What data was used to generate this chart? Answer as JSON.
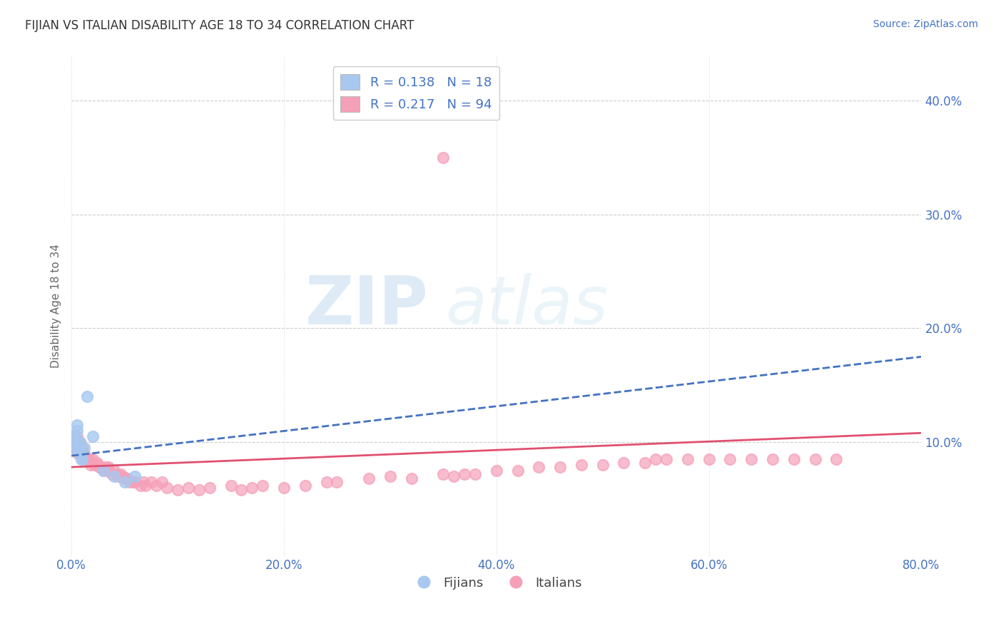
{
  "title": "FIJIAN VS ITALIAN DISABILITY AGE 18 TO 34 CORRELATION CHART",
  "source": "Source: ZipAtlas.com",
  "xlabel": "",
  "ylabel": "Disability Age 18 to 34",
  "xlim": [
    0.0,
    0.8
  ],
  "ylim": [
    0.0,
    0.44
  ],
  "xticks": [
    0.0,
    0.2,
    0.4,
    0.6,
    0.8
  ],
  "yticks": [
    0.1,
    0.2,
    0.3,
    0.4
  ],
  "fijian_R": 0.138,
  "fijian_N": 18,
  "italian_R": 0.217,
  "italian_N": 94,
  "fijian_color": "#a8c8f0",
  "italian_color": "#f5a0b8",
  "fijian_line_color": "#4472c4",
  "italian_line_color": "#e05070",
  "background_color": "#ffffff",
  "watermark_zip": "ZIP",
  "watermark_atlas": "atlas",
  "fijian_x": [
    0.002,
    0.003,
    0.004,
    0.005,
    0.005,
    0.006,
    0.007,
    0.008,
    0.008,
    0.009,
    0.01,
    0.012,
    0.015,
    0.02,
    0.03,
    0.04,
    0.05,
    0.06
  ],
  "fijian_y": [
    0.095,
    0.105,
    0.1,
    0.11,
    0.115,
    0.1,
    0.095,
    0.1,
    0.09,
    0.085,
    0.085,
    0.095,
    0.14,
    0.105,
    0.075,
    0.07,
    0.065,
    0.07
  ],
  "italian_x": [
    0.002,
    0.002,
    0.003,
    0.003,
    0.004,
    0.004,
    0.005,
    0.005,
    0.005,
    0.006,
    0.006,
    0.007,
    0.007,
    0.008,
    0.008,
    0.009,
    0.009,
    0.01,
    0.01,
    0.011,
    0.012,
    0.012,
    0.013,
    0.014,
    0.015,
    0.016,
    0.017,
    0.018,
    0.02,
    0.022,
    0.024,
    0.025,
    0.026,
    0.028,
    0.03,
    0.032,
    0.034,
    0.035,
    0.038,
    0.04,
    0.042,
    0.044,
    0.046,
    0.048,
    0.05,
    0.052,
    0.055,
    0.058,
    0.06,
    0.065,
    0.068,
    0.07,
    0.075,
    0.08,
    0.085,
    0.09,
    0.1,
    0.11,
    0.12,
    0.13,
    0.15,
    0.16,
    0.17,
    0.18,
    0.2,
    0.22,
    0.24,
    0.25,
    0.28,
    0.3,
    0.32,
    0.35,
    0.36,
    0.37,
    0.38,
    0.4,
    0.42,
    0.44,
    0.46,
    0.48,
    0.5,
    0.52,
    0.54,
    0.55,
    0.56,
    0.58,
    0.6,
    0.62,
    0.64,
    0.66,
    0.68,
    0.7,
    0.72,
    0.35
  ],
  "italian_y": [
    0.095,
    0.105,
    0.1,
    0.095,
    0.105,
    0.095,
    0.1,
    0.095,
    0.105,
    0.09,
    0.1,
    0.095,
    0.1,
    0.095,
    0.1,
    0.095,
    0.09,
    0.095,
    0.09,
    0.088,
    0.09,
    0.085,
    0.088,
    0.085,
    0.085,
    0.085,
    0.085,
    0.08,
    0.085,
    0.08,
    0.082,
    0.08,
    0.078,
    0.078,
    0.075,
    0.078,
    0.075,
    0.078,
    0.072,
    0.075,
    0.072,
    0.07,
    0.072,
    0.07,
    0.068,
    0.068,
    0.065,
    0.065,
    0.065,
    0.062,
    0.065,
    0.062,
    0.065,
    0.062,
    0.065,
    0.06,
    0.058,
    0.06,
    0.058,
    0.06,
    0.062,
    0.058,
    0.06,
    0.062,
    0.06,
    0.062,
    0.065,
    0.065,
    0.068,
    0.07,
    0.068,
    0.072,
    0.07,
    0.072,
    0.072,
    0.075,
    0.075,
    0.078,
    0.078,
    0.08,
    0.08,
    0.082,
    0.082,
    0.085,
    0.085,
    0.085,
    0.085,
    0.085,
    0.085,
    0.085,
    0.085,
    0.085,
    0.085,
    0.35
  ]
}
